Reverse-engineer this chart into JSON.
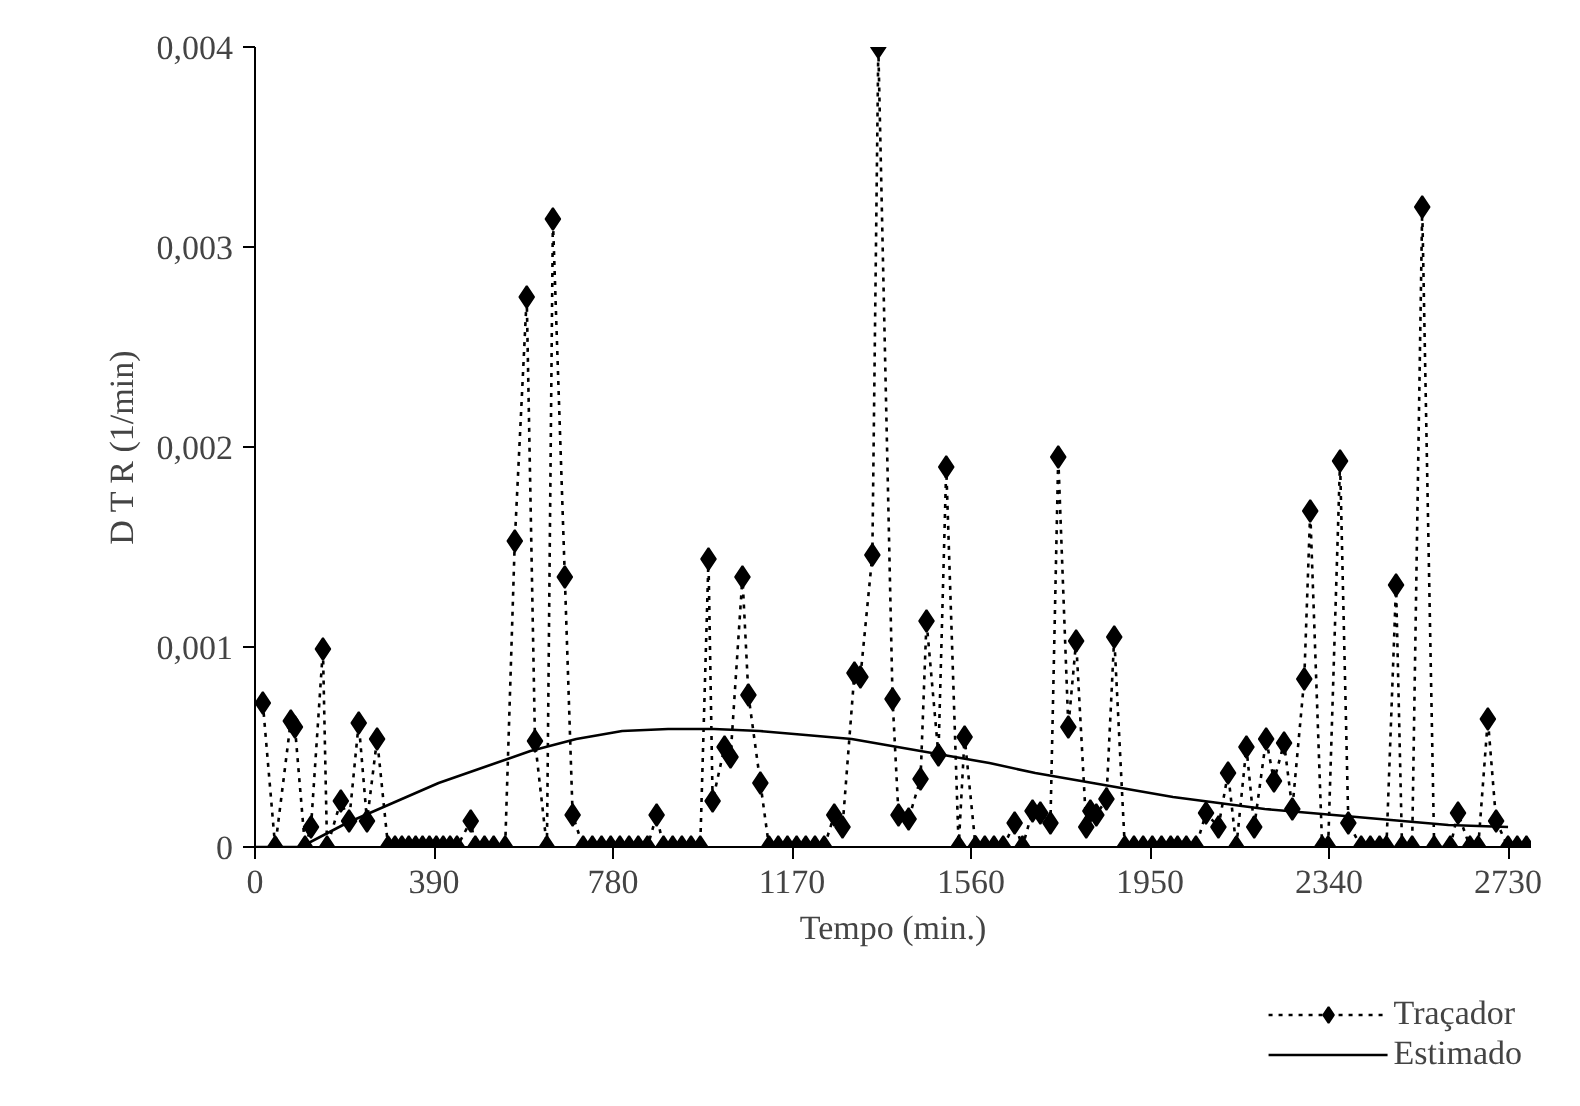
{
  "chart_data": {
    "type": "line",
    "xlabel": "Tempo (min.)",
    "ylabel": "D T R (1/min)",
    "xlim": [
      0,
      2780
    ],
    "ylim": [
      0,
      0.004
    ],
    "xticks": [
      0,
      390,
      780,
      1170,
      1560,
      1950,
      2340,
      2730
    ],
    "yticks": [
      {
        "value": 0,
        "label": "0"
      },
      {
        "value": 0.001,
        "label": "0,001"
      },
      {
        "value": 0.002,
        "label": "0,002"
      },
      {
        "value": 0.003,
        "label": "0,003"
      },
      {
        "value": 0.004,
        "label": "0,004"
      }
    ],
    "grid": false,
    "legend": "bottom right",
    "series": [
      {
        "name": "Traçador",
        "color": "#000000",
        "marker": "diamond",
        "line_style": "dotted",
        "x": [
          17,
          44,
          78,
          87,
          109,
          122,
          148,
          157,
          187,
          205,
          226,
          244,
          266,
          290,
          305,
          320,
          335,
          350,
          365,
          380,
          395,
          410,
          425,
          440,
          470,
          480,
          500,
          520,
          545,
          566,
          592,
          610,
          636,
          649,
          675,
          692,
          715,
          735,
          755,
          775,
          795,
          815,
          835,
          855,
          875,
          890,
          910,
          930,
          950,
          970,
          988,
          997,
          1023,
          1036,
          1062,
          1075,
          1101,
          1120,
          1140,
          1160,
          1180,
          1200,
          1220,
          1240,
          1262,
          1280,
          1306,
          1319,
          1345,
          1358,
          1389,
          1402,
          1424,
          1450,
          1463,
          1489,
          1506,
          1533,
          1546,
          1570,
          1590,
          1610,
          1630,
          1655,
          1672,
          1694,
          1711,
          1733,
          1750,
          1772,
          1789,
          1811,
          1820,
          1833,
          1855,
          1872,
          1895,
          1915,
          1935,
          1955,
          1975,
          1995,
          2010,
          2029,
          2050,
          2072,
          2099,
          2120,
          2138,
          2160,
          2177,
          2203,
          2220,
          2242,
          2260,
          2286,
          2299,
          2325,
          2338,
          2364,
          2382,
          2410,
          2430,
          2450,
          2465,
          2486,
          2499,
          2521,
          2543,
          2569,
          2604,
          2621,
          2647,
          2665,
          2686,
          2704,
          2730,
          2750,
          2770
        ],
        "values": [
          0.00072,
          0,
          0.00063,
          0.0006,
          0,
          0.0001,
          0.00099,
          0,
          0.00023,
          0.00013,
          0.00062,
          0.00013,
          0.00054,
          0,
          0,
          0,
          0,
          0,
          0,
          0,
          0,
          0,
          0,
          0,
          0.00013,
          0,
          0,
          0,
          0,
          0.00153,
          0.00275,
          0.00053,
          0,
          0.00314,
          0.00135,
          0.00016,
          0,
          0,
          0,
          0,
          0,
          0,
          0,
          0,
          0.00016,
          0,
          0,
          0,
          0,
          0,
          0.00144,
          0.00023,
          0.0005,
          0.00045,
          0.00135,
          0.00076,
          0.00032,
          0,
          0,
          0,
          0,
          0,
          0,
          0,
          0.00016,
          0.0001,
          0.00087,
          0.00085,
          0.00146,
          0.004,
          0.00074,
          0.00016,
          0.00014,
          0.00034,
          0.00113,
          0.00046,
          0.0019,
          0,
          0.00055,
          0,
          0,
          0,
          0,
          0.00012,
          0,
          0.00018,
          0.00017,
          0.00012,
          0.00195,
          0.0006,
          0.00103,
          0.0001,
          0.00018,
          0.00016,
          0.00024,
          0.00105,
          0,
          0,
          0,
          0,
          0,
          0,
          0,
          0,
          0,
          0.00017,
          0.0001,
          0.00037,
          0,
          0.0005,
          0.0001,
          0.00054,
          0.00033,
          0.00052,
          0.00019,
          0.00084,
          0.00168,
          0,
          0,
          0.00193,
          0.00012,
          0,
          0,
          0,
          0,
          0.00131,
          0,
          0,
          0.0032,
          0,
          0,
          0.00017,
          0,
          0,
          0.00064,
          0.00013,
          0,
          0,
          0
        ]
      },
      {
        "name": "Estimado",
        "color": "#000000",
        "marker": "none",
        "line_style": "solid",
        "x": [
          0,
          60,
          100,
          200,
          300,
          400,
          500,
          600,
          700,
          800,
          900,
          1000,
          1100,
          1200,
          1300,
          1400,
          1500,
          1600,
          1700,
          1800,
          1900,
          2000,
          2100,
          2200,
          2300,
          2400,
          2500,
          2600,
          2730
        ],
        "values": [
          0,
          0,
          0,
          0.00012,
          0.00022,
          0.00032,
          0.0004,
          0.00048,
          0.00054,
          0.00058,
          0.00059,
          0.00059,
          0.00058,
          0.00056,
          0.00054,
          0.0005,
          0.00046,
          0.00042,
          0.00037,
          0.00033,
          0.00029,
          0.00025,
          0.00022,
          0.00019,
          0.00017,
          0.00015,
          0.00013,
          0.00011,
          0.0001
        ]
      }
    ]
  }
}
